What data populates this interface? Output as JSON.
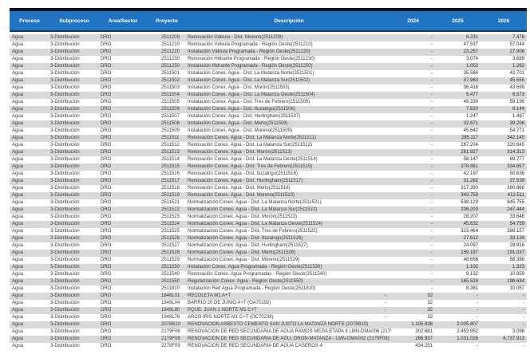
{
  "colors": {
    "header_bg": "#2173C4",
    "header_text": "#FFFFFF",
    "top_border": "#0D0F14",
    "header_underline": "#17375E",
    "stripe_gray": "#D9D9D9",
    "stripe_white": "#FFFFFF",
    "body_text": "#3A3A3A",
    "number_text": "#26282E"
  },
  "table": {
    "columns": [
      {
        "key": "proceso",
        "label": "Proceso"
      },
      {
        "key": "subproceso",
        "label": "Subproceso"
      },
      {
        "key": "area",
        "label": "Área/Sector"
      },
      {
        "key": "proyecto",
        "label": "Proyecto"
      },
      {
        "key": "descripcion",
        "label": "Descripción"
      },
      {
        "key": "y2024",
        "label": "2024"
      },
      {
        "key": "y2025",
        "label": "2025"
      },
      {
        "key": "y2026",
        "label": "2026"
      }
    ],
    "rows": [
      {
        "proceso": "Agua",
        "subproceso": "3-Distribución",
        "area": "DRO",
        "proyecto": "2511209",
        "descripcion": "Renovación Válvula - Dist. Moreno(2511209)",
        "desc_dash": "",
        "y2024": "-",
        "y2025": "6.231",
        "y2026": "7.478"
      },
      {
        "proceso": "Agua",
        "subproceso": "3-Distribución",
        "area": "DRO",
        "proyecto": "2511210",
        "descripcion": "Renovación Válvula Programada - Región Oeste(2511210)",
        "desc_dash": "",
        "y2024": "-",
        "y2025": "47.537",
        "y2026": "57.044"
      },
      {
        "proceso": "Agua",
        "subproceso": "3-Distribución",
        "area": "DRO",
        "proyecto": "2511220",
        "descripcion": "Instalación Válvula Programada - Región Oeste(2511220)",
        "desc_dash": "",
        "y2024": "-",
        "y2025": "23.257",
        "y2026": "27.908"
      },
      {
        "proceso": "Agua",
        "subproceso": "3-Distribución",
        "area": "DRO",
        "proyecto": "2511230",
        "descripcion": "Renovación Hidrante Programada - Región Oeste(2511230)",
        "desc_dash": "",
        "y2024": "-",
        "y2025": "3.074",
        "y2026": "3.689"
      },
      {
        "proceso": "Agua",
        "subproceso": "3-Distribución",
        "area": "DRO",
        "proyecto": "2511250",
        "descripcion": "Instalación Hidrante Programada - Región Oeste(2511250)",
        "desc_dash": "",
        "y2024": "-",
        "y2025": "1.052",
        "y2026": "1.262"
      },
      {
        "proceso": "Agua",
        "subproceso": "3-Distribución",
        "area": "DRO",
        "proyecto": "2511501",
        "descripcion": "Instalación Conex. Agua - Dist. La Matanza Norte(2511501)",
        "desc_dash": "",
        "y2024": "-",
        "y2025": "35.584",
        "y2026": "42.701"
      },
      {
        "proceso": "Agua",
        "subproceso": "3-Distribución",
        "area": "DRO",
        "proyecto": "2511502",
        "descripcion": "Instalación Conex. Agua - Dist. La Matanza Sur(2511502)",
        "desc_dash": "",
        "y2024": "-",
        "y2025": "37.963",
        "y2026": "45.555"
      },
      {
        "proceso": "Agua",
        "subproceso": "3-Distribución",
        "area": "DRO",
        "proyecto": "2511503",
        "descripcion": "Instalación Conex. Agua - Dist. Morón(2511503)",
        "desc_dash": "",
        "y2024": "-",
        "y2025": "36.416",
        "y2026": "43.699"
      },
      {
        "proceso": "Agua",
        "subproceso": "3-Distribución",
        "area": "DRO",
        "proyecto": "2511504",
        "descripcion": "Instalación Conex. Agua - Dist. La Matanza Oeste(2511504)",
        "desc_dash": "",
        "y2024": "-",
        "y2025": "5.477",
        "y2026": "6.573"
      },
      {
        "proceso": "Agua",
        "subproceso": "3-Distribución",
        "area": "DRO",
        "proyecto": "2511505",
        "descripcion": "Instalación Conex. Agua - Dist. Tres de Febrero(2511505)",
        "desc_dash": "",
        "y2024": "-",
        "y2025": "49.330",
        "y2026": "59.196"
      },
      {
        "proceso": "Agua",
        "subproceso": "3-Distribución",
        "area": "DRO",
        "proyecto": "2511506",
        "descripcion": "Instalación Conex. Agua - Dist. Ituzaingo(2511506)",
        "desc_dash": "",
        "y2024": "-",
        "y2025": "7.620",
        "y2026": "9.144"
      },
      {
        "proceso": "Agua",
        "subproceso": "3-Distribución",
        "area": "DRO",
        "proyecto": "2511507",
        "descripcion": "Instalación Conex. Agua - Dist. Hurlingham(2511507)",
        "desc_dash": "",
        "y2024": "-",
        "y2025": "1.247",
        "y2026": "1.497"
      },
      {
        "proceso": "Agua",
        "subproceso": "3-Distribución",
        "area": "DRO",
        "proyecto": "2511508",
        "descripcion": "Instalación Conex. Agua - Dist. Merlo(2511508)",
        "desc_dash": "",
        "y2024": "-",
        "y2025": "32.671",
        "y2026": "39.206"
      },
      {
        "proceso": "Agua",
        "subproceso": "3-Distribución",
        "area": "DRO",
        "proyecto": "2511509",
        "descripcion": "Instalación Conex. Agua - Dist. Moreno(2511509)",
        "desc_dash": "",
        "y2024": "-",
        "y2025": "45.642",
        "y2026": "54.771"
      },
      {
        "proceso": "Agua",
        "subproceso": "3-Distribución",
        "area": "DRO",
        "proyecto": "2511511",
        "descripcion": "Renovación Conex. Agua - Dist. La Matanza Norte(2511511)",
        "desc_dash": "",
        "y2024": "-",
        "y2025": "285.117",
        "y2026": "342.140"
      },
      {
        "proceso": "Agua",
        "subproceso": "3-Distribución",
        "area": "DRO",
        "proyecto": "2511512",
        "descripcion": "Renovación Conex. Agua - Dist. La Matanza Sur(2511512)",
        "desc_dash": "",
        "y2024": "-",
        "y2025": "267.204",
        "y2026": "320.645"
      },
      {
        "proceso": "Agua",
        "subproceso": "3-Distribución",
        "area": "DRO",
        "proyecto": "2511513",
        "descripcion": "Renovación Conex. Agua - Dist. Morón(2511513)",
        "desc_dash": "",
        "y2024": "-",
        "y2025": "261.927",
        "y2026": "314.313"
      },
      {
        "proceso": "Agua",
        "subproceso": "3-Distribución",
        "area": "DRO",
        "proyecto": "2511514",
        "descripcion": "Renovación Conex. Agua - Dist. La Matanza Oeste(2511514)",
        "desc_dash": "",
        "y2024": "-",
        "y2025": "58.147",
        "y2026": "69.777"
      },
      {
        "proceso": "Agua",
        "subproceso": "3-Distribución",
        "area": "DRO",
        "proyecto": "2511515",
        "descripcion": "Renovación Conex. Agua - Dist. Tres de Febrero(2511515)",
        "desc_dash": "",
        "y2024": "-",
        "y2025": "278.881",
        "y2026": "334.657"
      },
      {
        "proceso": "Agua",
        "subproceso": "3-Distribución",
        "area": "DRO",
        "proyecto": "2511516",
        "descripcion": "Renovación Conex. Agua - Dist. Ituzaingo(2511516)",
        "desc_dash": "",
        "y2024": "-",
        "y2025": "42.197",
        "y2026": "50.636"
      },
      {
        "proceso": "Agua",
        "subproceso": "3-Distribución",
        "area": "DRO",
        "proyecto": "2511517",
        "descripcion": "Renovación Conex. Agua - Dist. Hurlingham(2511517)",
        "desc_dash": "",
        "y2024": "-",
        "y2025": "31.282",
        "y2026": "37.539"
      },
      {
        "proceso": "Agua",
        "subproceso": "3-Distribución",
        "area": "DRO",
        "proyecto": "2511518",
        "descripcion": "Renovación Conex. Agua - Dist. Merlo(2511518)",
        "desc_dash": "",
        "y2024": "-",
        "y2025": "317.390",
        "y2026": "380.868"
      },
      {
        "proceso": "Agua",
        "subproceso": "3-Distribución",
        "area": "DRO",
        "proyecto": "2511519",
        "descripcion": "Renovación Conex. Agua - Dist. Moreno(2511519)",
        "desc_dash": "",
        "y2024": "-",
        "y2025": "343.759",
        "y2026": "412.511"
      },
      {
        "proceso": "Agua",
        "subproceso": "3-Distribución",
        "area": "DRO",
        "proyecto": "2511521",
        "descripcion": "Normalización Conex. Agua - Dist. La Matanza Norte(2511521)",
        "desc_dash": "",
        "y2024": "-",
        "y2025": "538.129",
        "y2026": "645.755"
      },
      {
        "proceso": "Agua",
        "subproceso": "3-Distribución",
        "area": "DRO",
        "proyecto": "2511522",
        "descripcion": "Normalización Conex. Agua - Dist. La Matanza Sur(2511522)",
        "desc_dash": "",
        "y2024": "-",
        "y2025": "206.203",
        "y2026": "247.444"
      },
      {
        "proceso": "Agua",
        "subproceso": "3-Distribución",
        "area": "DRO",
        "proyecto": "2511523",
        "descripcion": "Normalización Conex. Agua - Dist. Morón(2511523)",
        "desc_dash": "",
        "y2024": "-",
        "y2025": "28.207",
        "y2026": "33.848"
      },
      {
        "proceso": "Agua",
        "subproceso": "3-Distribución",
        "area": "DRO",
        "proyecto": "2511524",
        "descripcion": "Normalización Conex. Agua - Dist. La Matanza Oeste(2511524)",
        "desc_dash": "",
        "y2024": "-",
        "y2025": "45.632",
        "y2026": "54.759"
      },
      {
        "proceso": "Agua",
        "subproceso": "3-Distribución",
        "area": "DRO",
        "proyecto": "2511525",
        "descripcion": "Normalización Conex. Agua - Dist. Tres de Febrero(2511525)",
        "desc_dash": "",
        "y2024": "-",
        "y2025": "323.464",
        "y2026": "388.157"
      },
      {
        "proceso": "Agua",
        "subproceso": "3-Distribución",
        "area": "DRO",
        "proyecto": "2511526",
        "descripcion": "Normalización Conex. Agua - Dist. Ituzaingo(2511526)",
        "desc_dash": "",
        "y2024": "-",
        "y2025": "27.612",
        "y2026": "33.134"
      },
      {
        "proceso": "Agua",
        "subproceso": "3-Distribución",
        "area": "DRO",
        "proyecto": "2511527",
        "descripcion": "Normalización Conex. Agua - Dist. Hurlingham(2511527)",
        "desc_dash": "",
        "y2024": "-",
        "y2025": "24.097",
        "y2026": "28.916"
      },
      {
        "proceso": "Agua",
        "subproceso": "3-Distribución",
        "area": "DRO",
        "proyecto": "2511528",
        "descripcion": "Normalización Conex. Agua - Dist. Merlo(2511528)",
        "desc_dash": "",
        "y2024": "-",
        "y2025": "159.197",
        "y2026": "191.037"
      },
      {
        "proceso": "Agua",
        "subproceso": "3-Distribución",
        "area": "DRO",
        "proyecto": "2511529",
        "descripcion": "Normalización Conex. Agua - Dist. Moreno(2511529)",
        "desc_dash": "",
        "y2024": "-",
        "y2025": "48.656",
        "y2026": "58.388"
      },
      {
        "proceso": "Agua",
        "subproceso": "3-Distribución",
        "area": "DRO",
        "proyecto": "2511530",
        "descripcion": "Instalación Conex. Agua Programada - Región Oeste(2511530)",
        "desc_dash": "",
        "y2024": "-",
        "y2025": "1.102",
        "y2026": "1.323"
      },
      {
        "proceso": "Agua",
        "subproceso": "3-Distribución",
        "area": "DRO",
        "proyecto": "2511540",
        "descripcion": "Renovación Conex. Agua Programadas - Región Oeste(2511540)",
        "desc_dash": "",
        "y2024": "-",
        "y2025": "9.132",
        "y2026": "10.959"
      },
      {
        "proceso": "Agua",
        "subproceso": "3-Distribución",
        "area": "DRO",
        "proyecto": "2511550",
        "descripcion": "Regularización Conex. Agua - Región Oeste(2511550)",
        "desc_dash": "",
        "y2024": "-",
        "y2025": "165.528",
        "y2026": "198.634"
      },
      {
        "proceso": "Agua",
        "subproceso": "3-Distribución",
        "area": "DRO",
        "proyecto": "2511810",
        "descripcion": "Instalación Red Agua Programada - Región Oeste(2511810)",
        "desc_dash": "",
        "y2024": "-",
        "y2025": "8.381",
        "y2026": "10.057"
      },
      {
        "proceso": "Agua",
        "subproceso": "3-Distribución",
        "area": "DRO",
        "proyecto": "1848L01",
        "descripcion": "RECOLETA M1 A+T",
        "desc_dash": "-",
        "y2024": "32",
        "y2025": "-",
        "y2026": "-"
      },
      {
        "proceso": "Agua",
        "subproceso": "3-Distribución",
        "area": "DRO",
        "proyecto": "1848L04",
        "descripcion": "BARRIO 20 DE JUNIO A+T (OA70192)",
        "desc_dash": "-",
        "y2024": "32",
        "y2025": "-",
        "y2026": "-"
      },
      {
        "proceso": "Agua",
        "subproceso": "3-Distribución",
        "area": "DRO",
        "proyecto": "1848L80",
        "descripcion": "PQUE. JUAN 1 NORTE M1 C+T",
        "desc_dash": "-",
        "y2024": "32",
        "y2025": "-",
        "y2026": "-"
      },
      {
        "proceso": "Agua",
        "subproceso": "3-Distribución",
        "area": "DRO",
        "proyecto": "1948L76",
        "descripcion": "ARCO IRIS NORTE M1 C+T (OC70238)",
        "desc_dash": "-",
        "y2024": "32",
        "y2025": "-",
        "y2026": "-"
      },
      {
        "proceso": "Agua",
        "subproceso": "3-Distribución",
        "area": "DRO",
        "proyecto": "2078B10",
        "descripcion": "RENOVACIÓN ASBESTO CEMENTO SAN JUSTO LA MATANZA NORTE (2078B10)",
        "desc_dash": "",
        "y2024": "1.105.938",
        "y2025": "2.005.807",
        "y2026": "-"
      },
      {
        "proceso": "Agua",
        "subproceso": "3-Distribución",
        "area": "DRO",
        "proyecto": "2179F06",
        "descripcion": "RENOVACIÓN DE RED SECUNDARIA DE AGUA RAMOS MEJÍA ETAPA II LMN-DMA006 (2179F06",
        "desc_dash": "",
        "y2024": "302.681",
        "y2025": "2.453.952",
        "y2026": "3.098"
      },
      {
        "proceso": "Agua",
        "subproceso": "3-Distribución",
        "area": "DRO",
        "proyecto": "2179F08",
        "descripcion": "RENOVACIÓN DE RED SECUNDARIA DE AGU..ORÓN-MATANZA - LMN-DMA002 (2179F08)",
        "desc_dash": "",
        "y2024": "266.937",
        "y2025": "1.031.026",
        "y2026": "6.737.913"
      },
      {
        "proceso": "Agua",
        "subproceso": "3-Distribución",
        "area": "DRO",
        "proyecto": "2279F09",
        "descripcion": "RENOVACION DE RED SECUNDARIA DE AGUA CASEROS 4",
        "desc_dash": "",
        "y2024": "434.251",
        "y2025": "-",
        "y2026": "-"
      }
    ]
  }
}
